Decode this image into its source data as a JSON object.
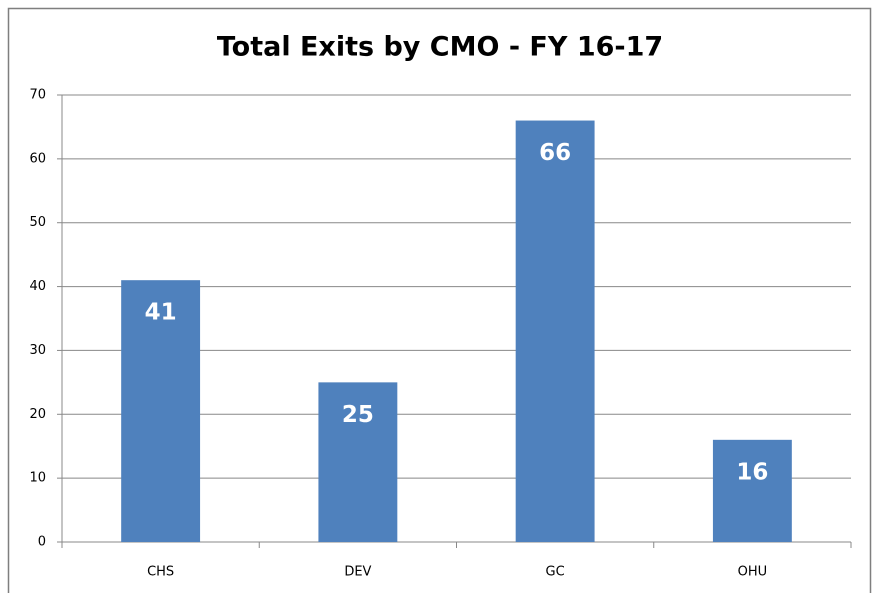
{
  "chart_data": {
    "type": "bar",
    "title": "Total Exits by CMO - FY 16-17",
    "categories": [
      "CHS",
      "DEV",
      "GC",
      "OHU"
    ],
    "values": [
      41,
      25,
      66,
      16
    ],
    "color": "#4f81bd",
    "ylim": [
      0,
      70
    ],
    "yticks": [
      0,
      10,
      20,
      30,
      40,
      50,
      60,
      70
    ],
    "grid": true
  }
}
